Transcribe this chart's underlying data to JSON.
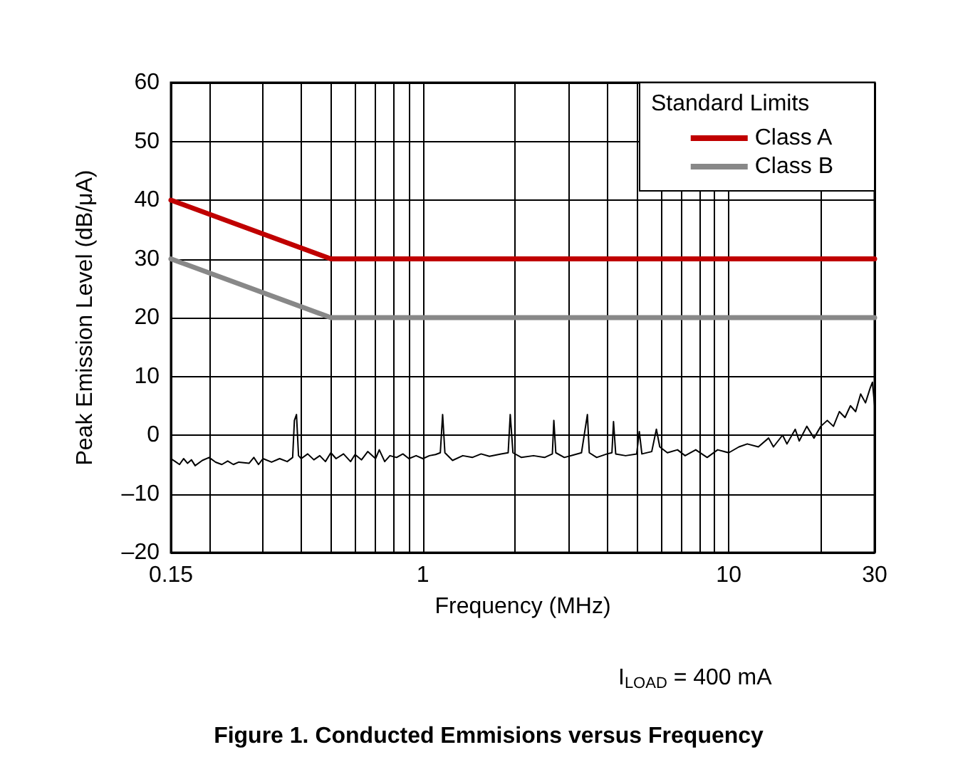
{
  "chart_data": {
    "type": "line",
    "xlabel": "Frequency (MHz)",
    "ylabel": "Peak Emission Level (dB/μA)",
    "legend_title": "Standard Limits",
    "legend": "top right",
    "grid": true,
    "log": "x",
    "line_style": "solid",
    "marker": "none",
    "xlim": [
      0.15,
      30
    ],
    "ylim": [
      -20,
      60
    ],
    "xticks": [
      0.15,
      {
        "value": 0.2,
        "label": null
      },
      {
        "value": 0.3,
        "label": null
      },
      {
        "value": 0.4,
        "label": null
      },
      {
        "value": 0.5,
        "label": null
      },
      {
        "value": 0.6,
        "label": null
      },
      {
        "value": 0.7,
        "label": null
      },
      {
        "value": 0.8,
        "label": null
      },
      {
        "value": 0.9,
        "label": null
      },
      1,
      {
        "value": 2,
        "label": null
      },
      {
        "value": 3,
        "label": null
      },
      {
        "value": 4,
        "label": null
      },
      {
        "value": 5,
        "label": null
      },
      {
        "value": 6,
        "label": null
      },
      {
        "value": 7,
        "label": null
      },
      {
        "value": 8,
        "label": null
      },
      {
        "value": 9,
        "label": null
      },
      10,
      {
        "value": 20,
        "label": null
      },
      30
    ],
    "yticks": [
      {
        "value": -20,
        "label": "–20"
      },
      {
        "value": -10,
        "label": "–10"
      },
      0,
      10,
      20,
      30,
      40,
      50,
      60
    ],
    "series": [
      {
        "name": "Class A",
        "color": "#c00000",
        "x": [
          0.15,
          0.5,
          30
        ],
        "values": [
          40,
          30,
          30
        ]
      },
      {
        "name": "Class B",
        "color": "#888888",
        "x": [
          0.15,
          0.5,
          30
        ],
        "values": [
          30,
          20,
          20
        ]
      },
      {
        "color": "#000000",
        "x": [
          0.15,
          0.155,
          0.16,
          0.165,
          0.17,
          0.175,
          0.18,
          0.19,
          0.2,
          0.21,
          0.22,
          0.23,
          0.24,
          0.25,
          0.27,
          0.28,
          0.29,
          0.3,
          0.32,
          0.34,
          0.36,
          0.375,
          0.38,
          0.386,
          0.392,
          0.4,
          0.42,
          0.44,
          0.46,
          0.48,
          0.5,
          0.52,
          0.55,
          0.58,
          0.6,
          0.63,
          0.66,
          0.7,
          0.72,
          0.75,
          0.78,
          0.82,
          0.86,
          0.9,
          0.95,
          1,
          1.05,
          1.1,
          1.14,
          1.16,
          1.18,
          1.25,
          1.35,
          1.45,
          1.55,
          1.65,
          1.8,
          1.9,
          1.93,
          1.97,
          2.1,
          2.3,
          2.5,
          2.65,
          2.68,
          2.72,
          2.9,
          3.1,
          3.3,
          3.45,
          3.5,
          3.7,
          4,
          4.15,
          4.2,
          4.27,
          4.6,
          5,
          5.1,
          5.2,
          5.6,
          5.8,
          5.95,
          6.3,
          6.8,
          7.2,
          7.8,
          8.5,
          9.2,
          10,
          10.8,
          11.5,
          12.5,
          13.5,
          14,
          15,
          15.5,
          16.5,
          17,
          18,
          19,
          20,
          21,
          22,
          23,
          24,
          25,
          26,
          27,
          28,
          29,
          29.5,
          30
        ],
        "values": [
          -4,
          -4.5,
          -5,
          -4,
          -4.8,
          -4.2,
          -5.2,
          -4.3,
          -3.8,
          -4.6,
          -5,
          -4.4,
          -5,
          -4.6,
          -4.8,
          -3.8,
          -5,
          -4,
          -4.6,
          -4,
          -4.5,
          -3.8,
          2.5,
          3.5,
          -3.5,
          -4,
          -3.2,
          -4.2,
          -3.5,
          -4.5,
          -3,
          -4,
          -3.2,
          -4.5,
          -3.3,
          -4.2,
          -2.8,
          -4,
          -2.5,
          -4.5,
          -3.5,
          -3.8,
          -3.2,
          -4,
          -3.5,
          -4,
          -3.5,
          -3.3,
          -3,
          3.5,
          -3,
          -4.3,
          -3.5,
          -3.8,
          -3.2,
          -3.6,
          -3.2,
          -3,
          3.5,
          -3,
          -3.8,
          -3.5,
          -3.8,
          -3.2,
          2.5,
          -3,
          -3.8,
          -3.4,
          -3,
          3.5,
          -3,
          -3.8,
          -3.2,
          -3,
          2.3,
          -3.2,
          -3.5,
          -3.2,
          0.6,
          -3.2,
          -2.8,
          1,
          -2,
          -3,
          -2.5,
          -3.5,
          -2.5,
          -3.8,
          -2.5,
          -3,
          -2,
          -1.5,
          -2,
          -0.5,
          -2,
          0,
          -1.5,
          1,
          -1,
          1.5,
          -0.5,
          1.5,
          2.5,
          1.5,
          4,
          3,
          5,
          4,
          7,
          5.5,
          8,
          9,
          5
        ]
      }
    ],
    "annotations": [
      "I$_{LOAD}$ = 400 mA",
      "Figure 1. Conducted Emmisions versus Frequency"
    ]
  }
}
